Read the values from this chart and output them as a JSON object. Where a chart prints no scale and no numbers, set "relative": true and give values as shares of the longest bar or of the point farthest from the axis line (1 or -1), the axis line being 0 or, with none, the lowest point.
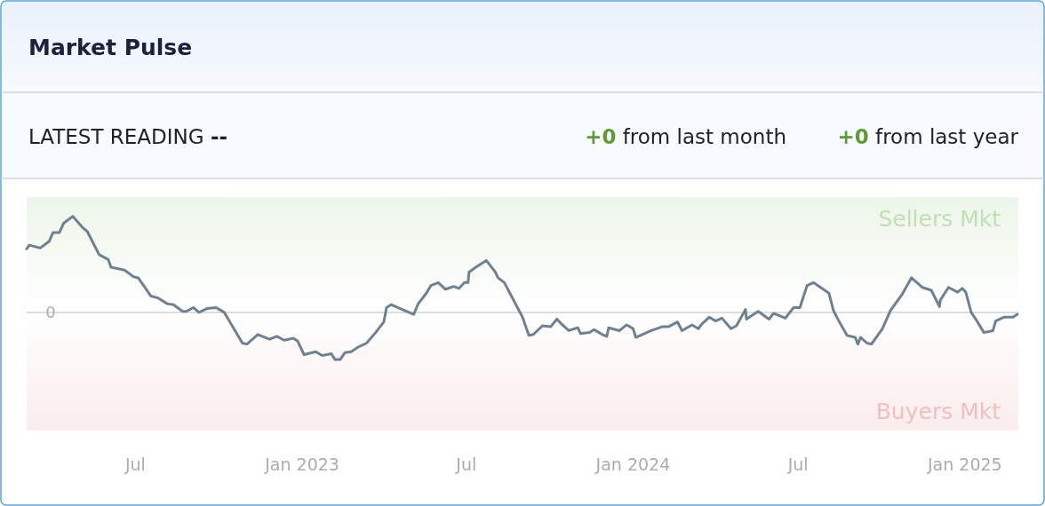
{
  "chart_data": {
    "type": "line",
    "relative": true,
    "title": "Market Pulse",
    "annotations": [
      "LATEST READING --",
      "+0 from last month",
      "+0 from last year"
    ],
    "x": [
      "2022-03-03",
      "2022-03-06",
      "2022-03-18",
      "2022-03-28",
      "2022-04-01",
      "2022-04-08",
      "2022-04-13",
      "2022-04-23",
      "2022-05-04",
      "2022-05-09",
      "2022-05-22",
      "2022-06-01",
      "2022-06-04",
      "2022-06-19",
      "2022-06-29",
      "2022-07-04",
      "2022-07-18",
      "2022-07-26",
      "2022-08-05",
      "2022-08-12",
      "2022-08-22",
      "2022-08-26",
      "2022-09-03",
      "2022-09-09",
      "2022-09-18",
      "2022-09-28",
      "2022-10-07",
      "2022-10-27",
      "2022-11-01",
      "2022-11-13",
      "2022-11-26",
      "2022-12-04",
      "2022-12-12",
      "2022-12-22",
      "2022-12-27",
      "2023-01-03",
      "2023-01-16",
      "2023-01-23",
      "2023-02-02",
      "2023-02-06",
      "2023-02-12",
      "2023-02-17",
      "2023-02-24",
      "2023-03-04",
      "2023-03-13",
      "2023-03-23",
      "2023-04-01",
      "2023-04-04",
      "2023-04-09",
      "2023-04-19",
      "2023-05-04",
      "2023-05-09",
      "2023-05-18",
      "2023-05-23",
      "2023-05-31",
      "2023-06-08",
      "2023-06-17",
      "2023-06-23",
      "2023-06-29",
      "2023-07-03",
      "2023-07-04",
      "2023-07-13",
      "2023-07-23",
      "2023-08-02",
      "2023-08-05",
      "2023-08-12",
      "2023-09-01",
      "2023-09-08",
      "2023-09-13",
      "2023-09-23",
      "2023-10-02",
      "2023-10-09",
      "2023-10-14",
      "2023-10-22",
      "2023-11-01",
      "2023-11-04",
      "2023-11-14",
      "2023-11-19",
      "2023-11-28",
      "2023-12-03",
      "2023-12-05",
      "2023-12-17",
      "2023-12-25",
      "2024-01-01",
      "2024-01-04",
      "2024-01-21",
      "2024-02-02",
      "2024-02-09",
      "2024-02-19",
      "2024-02-24",
      "2024-03-06",
      "2024-03-13",
      "2024-03-17",
      "2024-03-25",
      "2024-04-01",
      "2024-04-08",
      "2024-04-18",
      "2024-04-24",
      "2024-05-04",
      "2024-05-05",
      "2024-05-18",
      "2024-05-30",
      "2024-06-04",
      "2024-06-17",
      "2024-06-26",
      "2024-07-03",
      "2024-07-11",
      "2024-07-18",
      "2024-08-04",
      "2024-08-09",
      "2024-08-15",
      "2024-08-24",
      "2024-09-02",
      "2024-09-05",
      "2024-09-08",
      "2024-09-15",
      "2024-09-20",
      "2024-10-02",
      "2024-10-11",
      "2024-10-24",
      "2024-11-03",
      "2024-11-15",
      "2024-11-25",
      "2024-12-04",
      "2024-12-05",
      "2024-12-14",
      "2024-12-24",
      "2024-12-29",
      "2025-01-02",
      "2025-01-08",
      "2025-01-15",
      "2025-01-22",
      "2025-02-01",
      "2025-02-04",
      "2025-02-13",
      "2025-02-23",
      "2025-02-28"
    ],
    "series": [
      {
        "color": "#6f8190",
        "values": [
          0.66,
          0.7,
          0.67,
          0.74,
          0.83,
          0.83,
          0.93,
          1.0,
          0.88,
          0.84,
          0.6,
          0.55,
          0.47,
          0.44,
          0.37,
          0.36,
          0.17,
          0.15,
          0.09,
          0.08,
          0.01,
          0.01,
          0.05,
          0.0,
          0.04,
          0.05,
          0.0,
          -0.32,
          -0.33,
          -0.23,
          -0.28,
          -0.25,
          -0.29,
          -0.27,
          -0.3,
          -0.44,
          -0.41,
          -0.45,
          -0.43,
          -0.49,
          -0.49,
          -0.42,
          -0.41,
          -0.36,
          -0.32,
          -0.21,
          -0.1,
          0.05,
          0.08,
          0.04,
          -0.02,
          0.09,
          0.2,
          0.28,
          0.31,
          0.24,
          0.27,
          0.25,
          0.31,
          0.31,
          0.42,
          0.48,
          0.54,
          0.42,
          0.36,
          0.31,
          -0.05,
          -0.24,
          -0.23,
          -0.14,
          -0.15,
          -0.07,
          -0.12,
          -0.19,
          -0.16,
          -0.22,
          -0.21,
          -0.18,
          -0.23,
          -0.25,
          -0.16,
          -0.19,
          -0.13,
          -0.17,
          -0.26,
          -0.19,
          -0.15,
          -0.15,
          -0.1,
          -0.19,
          -0.13,
          -0.17,
          -0.12,
          -0.05,
          -0.09,
          -0.06,
          -0.17,
          -0.14,
          0.03,
          -0.07,
          0.01,
          -0.07,
          -0.01,
          -0.06,
          0.05,
          0.05,
          0.28,
          0.31,
          0.2,
          0.02,
          -0.09,
          -0.24,
          -0.26,
          -0.33,
          -0.26,
          -0.32,
          -0.33,
          -0.17,
          0.02,
          0.19,
          0.36,
          0.26,
          0.23,
          0.06,
          0.13,
          0.26,
          0.21,
          0.25,
          0.21,
          0.0,
          -0.1,
          -0.21,
          -0.19,
          -0.09,
          -0.05,
          -0.05,
          -0.02
        ]
      }
    ],
    "xlim": [
      "2022-03-03",
      "2025-03-01"
    ],
    "xticks": [
      {
        "value": "2022-07-01",
        "label": "Jul"
      },
      {
        "value": "2023-01-01",
        "label": "Jan 2023"
      },
      {
        "value": "2023-07-01",
        "label": "Jul"
      },
      {
        "value": "2024-01-01",
        "label": "Jan 2024"
      },
      {
        "value": "2024-07-01",
        "label": "Jul"
      },
      {
        "value": "2025-01-01",
        "label": "Jan 2025"
      }
    ],
    "ref_lines": [
      {
        "axis": "y",
        "value": 0,
        "label": "0",
        "color": "#d3d3d3"
      }
    ],
    "bands": [
      {
        "axis": "y",
        "from": 0,
        "to": 1.2,
        "label": "Sellers Mkt",
        "color": "#c3dfb6"
      },
      {
        "axis": "y",
        "from": -1.23,
        "to": 0,
        "label": "Buyers Mkt",
        "color": "#f0c0c0"
      }
    ],
    "line_style": "solid"
  }
}
